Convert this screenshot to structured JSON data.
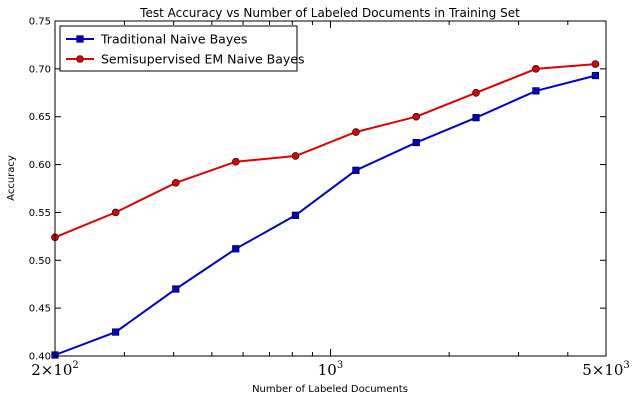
{
  "chart_data": {
    "type": "line",
    "title": "Test Accuracy vs Number of Labeled Documents in Training Set",
    "xlabel": "Number of Labeled Documents",
    "ylabel": "Accuracy",
    "xscale": "log",
    "xlim": [
      200,
      5000
    ],
    "ylim": [
      0.4,
      0.75
    ],
    "yticks": [
      0.4,
      0.45,
      0.5,
      0.55,
      0.6,
      0.65,
      0.7,
      0.75
    ],
    "yticklabels": [
      "0.40",
      "0.45",
      "0.50",
      "0.55",
      "0.60",
      "0.65",
      "0.70",
      "0.75"
    ],
    "xticks": [
      {
        "value": 200,
        "base": "2×10",
        "exp": "2"
      },
      {
        "value": 1000,
        "base": "10",
        "exp": "3"
      },
      {
        "value": 5000,
        "base": "5×10",
        "exp": "3"
      }
    ],
    "legend_position": "top-left",
    "grid": false,
    "series": [
      {
        "name": "Traditional Naive Bayes",
        "color": "#0000cc",
        "marker": "square",
        "x": [
          200,
          285,
          405,
          575,
          815,
          1160,
          1650,
          2340,
          3320,
          4700
        ],
        "y": [
          0.401,
          0.425,
          0.47,
          0.512,
          0.547,
          0.594,
          0.623,
          0.649,
          0.677,
          0.693
        ]
      },
      {
        "name": "Semisupervised EM Naive Bayes",
        "color": "#dd0000",
        "marker": "circle",
        "x": [
          200,
          285,
          405,
          575,
          815,
          1160,
          1650,
          2340,
          3320,
          4700
        ],
        "y": [
          0.524,
          0.55,
          0.581,
          0.603,
          0.609,
          0.634,
          0.65,
          0.675,
          0.7,
          0.705
        ]
      }
    ]
  }
}
